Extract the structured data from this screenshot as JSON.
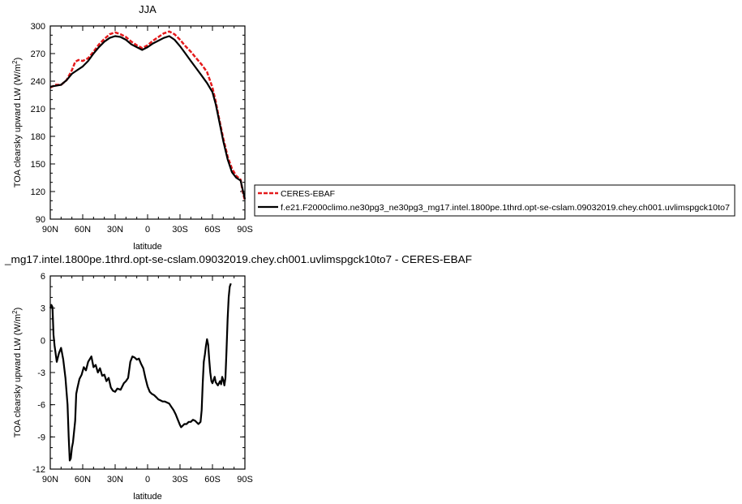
{
  "chart_data": [
    {
      "type": "line",
      "title": "JJA",
      "xlabel": "latitude",
      "ylabel": "TOA clearsky upward LW (W/m²)",
      "xlim": [
        90,
        -90
      ],
      "ylim": [
        90,
        300
      ],
      "x_ticks": [
        90,
        60,
        30,
        0,
        -30,
        -60,
        -90
      ],
      "x_tick_labels": [
        "90N",
        "60N",
        "30N",
        "0",
        "30S",
        "60S",
        "90S"
      ],
      "y_ticks": [
        90,
        120,
        150,
        180,
        210,
        240,
        270,
        300
      ],
      "y_tick_labels": [
        "90",
        "120",
        "150",
        "180",
        "210",
        "240",
        "270",
        "300"
      ],
      "legend": "right",
      "series": [
        {
          "name": "CERES-EBAF",
          "color": "#e41a1c",
          "style": "dashed",
          "points": [
            [
              90,
              233
            ],
            [
              85,
              236
            ],
            [
              80,
              236
            ],
            [
              75,
              241
            ],
            [
              70,
              252
            ],
            [
              67,
              261
            ],
            [
              64,
              263
            ],
            [
              60,
              262
            ],
            [
              55,
              265
            ],
            [
              50,
              272
            ],
            [
              45,
              280
            ],
            [
              40,
              286
            ],
            [
              35,
              291
            ],
            [
              30,
              293
            ],
            [
              25,
              291
            ],
            [
              20,
              288
            ],
            [
              15,
              283
            ],
            [
              10,
              279
            ],
            [
              5,
              276
            ],
            [
              0,
              279
            ],
            [
              -5,
              284
            ],
            [
              -10,
              288
            ],
            [
              -15,
              292
            ],
            [
              -20,
              294
            ],
            [
              -25,
              291
            ],
            [
              -30,
              285
            ],
            [
              -35,
              278
            ],
            [
              -40,
              272
            ],
            [
              -45,
              265
            ],
            [
              -50,
              258
            ],
            [
              -55,
              250
            ],
            [
              -60,
              233
            ],
            [
              -63,
              218
            ],
            [
              -66,
              200
            ],
            [
              -70,
              178
            ],
            [
              -74,
              158
            ],
            [
              -78,
              145
            ],
            [
              -82,
              137
            ],
            [
              -86,
              133
            ],
            [
              -88,
              120
            ],
            [
              -90,
              110
            ]
          ]
        },
        {
          "name": "f.e21.F2000climo.ne30pg3_ne30pg3_mg17.intel.1800pe.1thrd.opt-se-cslam.09032019.chey.ch001.uvlimspgck10to7",
          "color": "#000000",
          "style": "solid",
          "points": [
            [
              90,
              234
            ],
            [
              85,
              235
            ],
            [
              80,
              236
            ],
            [
              75,
              241
            ],
            [
              70,
              248
            ],
            [
              65,
              252
            ],
            [
              60,
              256
            ],
            [
              55,
              262
            ],
            [
              50,
              270
            ],
            [
              45,
              277
            ],
            [
              40,
              283
            ],
            [
              35,
              287
            ],
            [
              30,
              289
            ],
            [
              25,
              288
            ],
            [
              20,
              285
            ],
            [
              15,
              280
            ],
            [
              10,
              277
            ],
            [
              5,
              274
            ],
            [
              0,
              277
            ],
            [
              -5,
              281
            ],
            [
              -10,
              284
            ],
            [
              -15,
              287
            ],
            [
              -20,
              289
            ],
            [
              -25,
              285
            ],
            [
              -30,
              278
            ],
            [
              -35,
              270
            ],
            [
              -40,
              262
            ],
            [
              -45,
              254
            ],
            [
              -50,
              246
            ],
            [
              -55,
              238
            ],
            [
              -60,
              228
            ],
            [
              -63,
              215
            ],
            [
              -66,
              198
            ],
            [
              -70,
              175
            ],
            [
              -74,
              155
            ],
            [
              -78,
              141
            ],
            [
              -82,
              135
            ],
            [
              -86,
              132
            ],
            [
              -88,
              122
            ],
            [
              -90,
              112
            ]
          ]
        }
      ]
    },
    {
      "type": "line",
      "title": "_mg17.intel.1800pe.1thrd.opt-se-cslam.09032019.chey.ch001.uvlimspgck10to7 - CERES-EBAF",
      "xlabel": "latitude",
      "ylabel": "TOA clearsky upward LW (W/m²)",
      "xlim": [
        90,
        -90
      ],
      "ylim": [
        -12,
        6
      ],
      "x_ticks": [
        90,
        60,
        30,
        0,
        -30,
        -60,
        -90
      ],
      "x_tick_labels": [
        "90N",
        "60N",
        "30N",
        "0",
        "30S",
        "60S",
        "90S"
      ],
      "y_ticks": [
        -12,
        -9,
        -6,
        -3,
        0,
        3,
        6
      ],
      "y_tick_labels": [
        "-12",
        "-9",
        "-6",
        "-3",
        "0",
        "3",
        "6"
      ],
      "series": [
        {
          "color": "#000000",
          "style": "solid",
          "points": [
            [
              90,
              3.0
            ],
            [
              89,
              3.3
            ],
            [
              88,
              3.1
            ],
            [
              87,
              0.5
            ],
            [
              86,
              -0.5
            ],
            [
              84,
              -2.0
            ],
            [
              82,
              -1.2
            ],
            [
              80,
              -0.7
            ],
            [
              78,
              -1.8
            ],
            [
              76,
              -3.5
            ],
            [
              74,
              -6.0
            ],
            [
              73,
              -9.0
            ],
            [
              72,
              -11.2
            ],
            [
              71,
              -11.0
            ],
            [
              70,
              -10.0
            ],
            [
              69,
              -9.5
            ],
            [
              67,
              -7.5
            ],
            [
              66,
              -5.0
            ],
            [
              65,
              -4.5
            ],
            [
              63,
              -3.6
            ],
            [
              61,
              -3.2
            ],
            [
              59,
              -2.5
            ],
            [
              57,
              -2.8
            ],
            [
              55,
              -2.0
            ],
            [
              52,
              -1.5
            ],
            [
              50,
              -2.5
            ],
            [
              48,
              -2.3
            ],
            [
              46,
              -3.0
            ],
            [
              44,
              -2.6
            ],
            [
              42,
              -3.3
            ],
            [
              40,
              -3.2
            ],
            [
              38,
              -3.8
            ],
            [
              36,
              -3.5
            ],
            [
              34,
              -4.4
            ],
            [
              32,
              -4.7
            ],
            [
              30,
              -4.8
            ],
            [
              28,
              -4.5
            ],
            [
              25,
              -4.6
            ],
            [
              22,
              -4.0
            ],
            [
              20,
              -3.8
            ],
            [
              18,
              -3.5
            ],
            [
              16,
              -2.0
            ],
            [
              14,
              -1.5
            ],
            [
              12,
              -1.6
            ],
            [
              10,
              -1.8
            ],
            [
              8,
              -1.7
            ],
            [
              6,
              -2.2
            ],
            [
              4,
              -2.6
            ],
            [
              2,
              -3.5
            ],
            [
              0,
              -4.3
            ],
            [
              -2,
              -4.8
            ],
            [
              -4,
              -5.0
            ],
            [
              -6,
              -5.1
            ],
            [
              -8,
              -5.3
            ],
            [
              -10,
              -5.5
            ],
            [
              -12,
              -5.6
            ],
            [
              -14,
              -5.7
            ],
            [
              -16,
              -5.7
            ],
            [
              -18,
              -5.8
            ],
            [
              -20,
              -5.9
            ],
            [
              -22,
              -6.2
            ],
            [
              -24,
              -6.5
            ],
            [
              -26,
              -6.9
            ],
            [
              -28,
              -7.4
            ],
            [
              -30,
              -7.9
            ],
            [
              -31,
              -8.1
            ],
            [
              -32,
              -8.0
            ],
            [
              -34,
              -7.8
            ],
            [
              -36,
              -7.8
            ],
            [
              -38,
              -7.6
            ],
            [
              -40,
              -7.6
            ],
            [
              -42,
              -7.4
            ],
            [
              -44,
              -7.5
            ],
            [
              -46,
              -7.7
            ],
            [
              -47,
              -7.8
            ],
            [
              -49,
              -7.6
            ],
            [
              -50,
              -6.5
            ],
            [
              -51,
              -4.0
            ],
            [
              -52,
              -2.0
            ],
            [
              -53,
              -1.3
            ],
            [
              -54,
              -0.5
            ],
            [
              -55,
              0.1
            ],
            [
              -56,
              -0.4
            ],
            [
              -57,
              -1.8
            ],
            [
              -58,
              -3.0
            ],
            [
              -59,
              -3.8
            ],
            [
              -60,
              -4.0
            ],
            [
              -62,
              -3.4
            ],
            [
              -63,
              -3.9
            ],
            [
              -65,
              -4.2
            ],
            [
              -67,
              -3.8
            ],
            [
              -68,
              -4.1
            ],
            [
              -69,
              -3.4
            ],
            [
              -70,
              -3.7
            ],
            [
              -71,
              -4.2
            ],
            [
              -72,
              -3.5
            ],
            [
              -73,
              -1.0
            ],
            [
              -74,
              2.0
            ],
            [
              -75,
              4.0
            ],
            [
              -76,
              5.0
            ],
            [
              -77,
              5.3
            ]
          ]
        }
      ]
    }
  ]
}
